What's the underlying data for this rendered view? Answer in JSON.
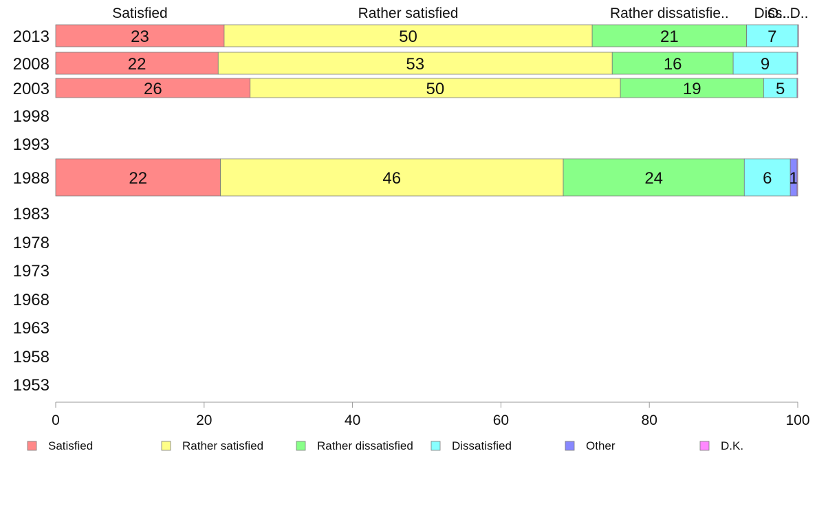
{
  "chart_data": {
    "type": "bar",
    "orientation": "horizontal",
    "stacked": true,
    "categories": [
      "2013",
      "2008",
      "2003",
      "1998",
      "1993",
      "1988",
      "1983",
      "1978",
      "1973",
      "1968",
      "1963",
      "1958",
      "1953"
    ],
    "series": [
      {
        "name": "Satisfied",
        "color": "#ff8888",
        "values": [
          22.7,
          21.9,
          26.2,
          null,
          null,
          22.2,
          null,
          null,
          null,
          null,
          null,
          null,
          null
        ],
        "labels": [
          "23",
          "22",
          "26",
          "",
          "",
          "22",
          "",
          "",
          "",
          "",
          "",
          "",
          ""
        ]
      },
      {
        "name": "Rather satisfied",
        "color": "#ffff88",
        "values": [
          49.6,
          53.1,
          49.9,
          null,
          null,
          46.2,
          null,
          null,
          null,
          null,
          null,
          null,
          null
        ],
        "labels": [
          "50",
          "53",
          "50",
          "",
          "",
          "46",
          "",
          "",
          "",
          "",
          "",
          "",
          ""
        ]
      },
      {
        "name": "Rather dissatisfied",
        "color": "#88ff88",
        "values": [
          20.8,
          16.3,
          19.3,
          null,
          null,
          24.4,
          null,
          null,
          null,
          null,
          null,
          null,
          null
        ],
        "labels": [
          "21",
          "16",
          "19",
          "",
          "",
          "24",
          "",
          "",
          "",
          "",
          "",
          "",
          ""
        ]
      },
      {
        "name": "Dissatisfied",
        "color": "#88ffff",
        "values": [
          6.9,
          8.6,
          4.5,
          null,
          null,
          6.2,
          null,
          null,
          null,
          null,
          null,
          null,
          null
        ],
        "labels": [
          "7",
          "9",
          "5",
          "",
          "",
          "6",
          "",
          "",
          "",
          "",
          "",
          "",
          ""
        ]
      },
      {
        "name": "Other",
        "color": "#8888ff",
        "values": [
          0,
          0,
          0,
          null,
          null,
          0.9,
          null,
          null,
          null,
          null,
          null,
          null,
          null
        ],
        "labels": [
          "",
          "",
          "",
          "",
          "",
          "1",
          "",
          "",
          "",
          "",
          "",
          "",
          ""
        ]
      },
      {
        "name": "D.K.",
        "color": "#ff88ff",
        "values": [
          0.1,
          0.1,
          0.1,
          null,
          null,
          0.1,
          null,
          null,
          null,
          null,
          null,
          null,
          null
        ],
        "labels": [
          "",
          "",
          "",
          "",
          "",
          "",
          "",
          "",
          "",
          "",
          "",
          "",
          ""
        ]
      }
    ],
    "top_labels": [
      "Satisfied",
      "Rather satisfied",
      "Rather dissatisfie..",
      "Diss..",
      "O..",
      "D.."
    ],
    "xlim": [
      0,
      100
    ],
    "xticks": [
      "0",
      "20",
      "40",
      "60",
      "80",
      "100"
    ],
    "legend_position": "bottom",
    "grid": false
  }
}
